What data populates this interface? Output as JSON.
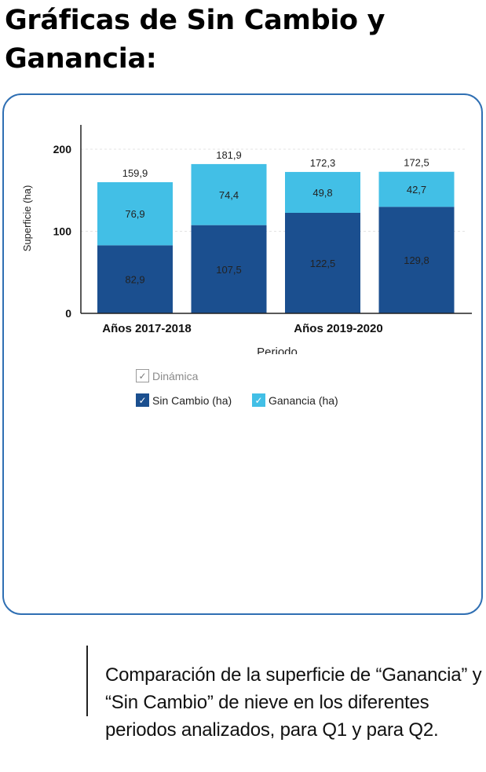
{
  "heading": {
    "line1": "Gráficas de Sin Cambio y",
    "line2": "Ganancia:"
  },
  "chart_data": {
    "type": "bar",
    "stacked": true,
    "categories": [
      "",
      "",
      "",
      ""
    ],
    "x_group_labels": [
      "Años 2017-2018",
      "Años 2019-2020"
    ],
    "series": [
      {
        "name": "Sin Cambio (ha)",
        "color": "#1b4f8f",
        "values": [
          82.9,
          107.5,
          122.5,
          129.8
        ],
        "labels": [
          "82,9",
          "107,5",
          "122,5",
          "129,8"
        ]
      },
      {
        "name": "Ganancia (ha)",
        "color": "#42bfe6",
        "values": [
          76.9,
          74.4,
          49.8,
          42.7
        ],
        "labels": [
          "76,9",
          "74,4",
          "49,8",
          "42,7"
        ]
      }
    ],
    "totals": [
      159.9,
      181.9,
      172.3,
      172.5
    ],
    "total_labels": [
      "159,9",
      "181,9",
      "172,3",
      "172,5"
    ],
    "xlabel": "Periodo",
    "ylabel": "Superficie (ha)",
    "ylim": [
      0,
      200
    ],
    "yticks": [
      0,
      100,
      200
    ],
    "ytick_labels": [
      "0",
      "100",
      "200"
    ],
    "grid": true
  },
  "legend": {
    "dynamic_label": "Dinámica",
    "check_glyph": "✓",
    "items": [
      {
        "label": "Sin Cambio (ha)",
        "color": "#1b4f8f"
      },
      {
        "label": "Ganancia (ha)",
        "color": "#42bfe6"
      }
    ]
  },
  "caption": "Comparación de la superficie de “Ganancia” y “Sin Cambio” de nieve en los diferentes periodos analizados, para Q1 y para Q2."
}
